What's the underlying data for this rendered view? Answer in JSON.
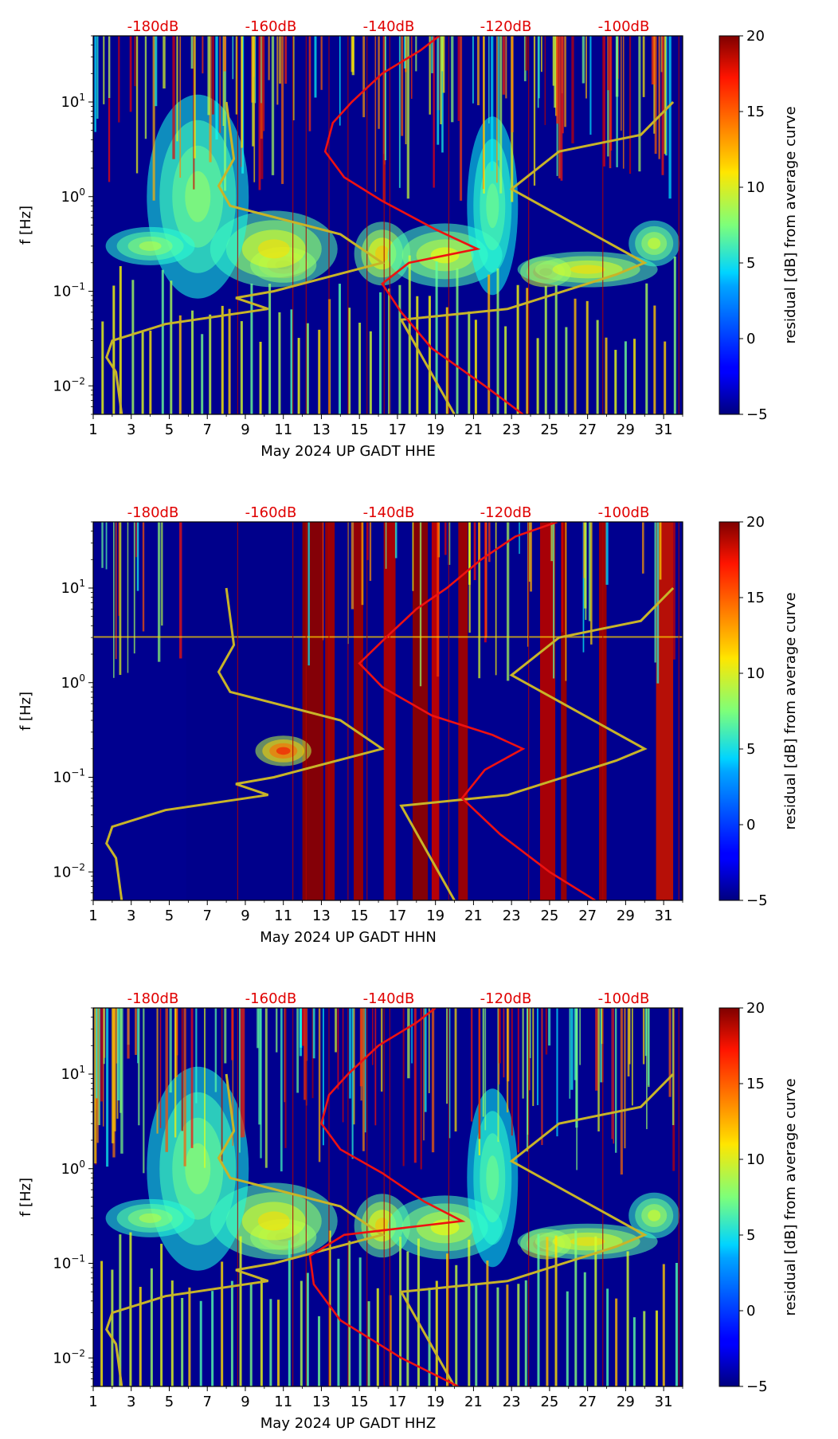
{
  "figure": {
    "time_axis": {
      "tick_labels": [
        "1",
        "3",
        "5",
        "7",
        "9",
        "11",
        "13",
        "15",
        "17",
        "19",
        "21",
        "23",
        "25",
        "27",
        "29",
        "31"
      ],
      "range_days": [
        1,
        32
      ]
    },
    "freq_axis": {
      "label": "f [Hz]",
      "tick_labels": [
        "10^-2",
        "10^-1",
        "10^0",
        "10^1"
      ],
      "range_hz": [
        0.005,
        50
      ]
    },
    "db_axis": {
      "tick_labels": [
        "-180dB",
        "-160dB",
        "-140dB",
        "-120dB",
        "-100dB"
      ],
      "color": "#e00000"
    },
    "colorbar": {
      "label": "residual [dB] from average curve",
      "tick_labels": [
        "−5",
        "0",
        "5",
        "10",
        "15",
        "20"
      ],
      "range": [
        -5,
        20
      ],
      "colormap": "jet"
    }
  },
  "chart_data": [
    {
      "type": "heatmap",
      "title": "",
      "xlabel": "May 2024 UP GADT  HHE",
      "ylabel": "f [Hz]",
      "xlim": [
        1,
        32
      ],
      "ylim_hz": [
        0.005,
        50
      ],
      "clim_db": [
        -5,
        20
      ],
      "yellow_curve": {
        "day": [
          8,
          8.4,
          7.6,
          8.2,
          14,
          16.2,
          10.5,
          8.5,
          10.2,
          4.8,
          2,
          1.7,
          2.2,
          2.5
        ],
        "hz": [
          10,
          2.5,
          1.3,
          0.8,
          0.4,
          0.2,
          0.1,
          0.085,
          0.065,
          0.045,
          0.03,
          0.02,
          0.014,
          0.005
        ]
      },
      "yellow_curve_right": {
        "day": [
          20,
          17.2,
          22.8,
          28.5,
          30,
          23,
          25.5,
          29.8,
          31.5
        ],
        "hz": [
          0.005,
          0.05,
          0.065,
          0.15,
          0.2,
          1.2,
          3,
          4.5,
          10
        ]
      },
      "red_psd_curve": {
        "day": [
          23.6,
          21.6,
          18.8,
          17.2,
          16.2,
          17.6,
          21.2,
          19,
          16.2,
          14.2,
          13.2,
          13.6,
          14.6,
          16.2,
          18.2,
          19.2
        ],
        "hz": [
          0.005,
          0.01,
          0.025,
          0.06,
          0.12,
          0.2,
          0.28,
          0.45,
          0.9,
          1.6,
          3,
          6,
          10,
          20,
          35,
          50
        ]
      }
    },
    {
      "type": "heatmap",
      "title": "",
      "xlabel": "May 2024 UP GADT  HHN",
      "ylabel": "f [Hz]",
      "xlim": [
        1,
        32
      ],
      "ylim_hz": [
        0.005,
        50
      ],
      "clim_db": [
        -5,
        20
      ],
      "yellow_curve": {
        "day": [
          8,
          8.4,
          7.6,
          8.2,
          14,
          16.2,
          10.5,
          8.5,
          10.2,
          4.8,
          2,
          1.7,
          2.2,
          2.5
        ],
        "hz": [
          10,
          2.5,
          1.3,
          0.8,
          0.4,
          0.2,
          0.1,
          0.085,
          0.065,
          0.045,
          0.03,
          0.02,
          0.014,
          0.005
        ]
      },
      "yellow_curve_right": {
        "day": [
          20,
          17.2,
          22.8,
          28.5,
          30,
          23,
          25.5,
          29.8,
          31.5
        ],
        "hz": [
          0.005,
          0.05,
          0.065,
          0.15,
          0.2,
          1.2,
          3,
          4.5,
          10
        ]
      },
      "red_psd_curve": {
        "day": [
          27.4,
          25,
          22.4,
          20.4,
          21.6,
          23.6,
          22,
          18.8,
          16.2,
          15,
          16.4,
          18,
          19.6,
          21.4,
          23.2,
          25.4
        ],
        "hz": [
          0.005,
          0.01,
          0.025,
          0.06,
          0.12,
          0.2,
          0.28,
          0.45,
          0.9,
          1.6,
          3,
          6,
          10,
          20,
          35,
          50
        ]
      }
    },
    {
      "type": "heatmap",
      "title": "",
      "xlabel": "May 2024 UP GADT  HHZ",
      "ylabel": "f [Hz]",
      "xlim": [
        1,
        32
      ],
      "ylim_hz": [
        0.005,
        50
      ],
      "clim_db": [
        -5,
        20
      ],
      "yellow_curve": {
        "day": [
          8,
          8.4,
          7.6,
          8.2,
          14,
          16.2,
          10.5,
          8.5,
          10.2,
          4.8,
          2,
          1.7,
          2.2,
          2.5
        ],
        "hz": [
          10,
          2.5,
          1.3,
          0.8,
          0.4,
          0.2,
          0.1,
          0.085,
          0.065,
          0.045,
          0.03,
          0.02,
          0.014,
          0.005
        ]
      },
      "yellow_curve_right": {
        "day": [
          20,
          17.2,
          22.8,
          28.5,
          30,
          23,
          25.5,
          29.8,
          31.5
        ],
        "hz": [
          0.005,
          0.05,
          0.065,
          0.15,
          0.2,
          1.2,
          3,
          4.5,
          10
        ]
      },
      "red_psd_curve": {
        "day": [
          20.2,
          17.2,
          14,
          12.6,
          12.4,
          14.2,
          20.4,
          18.4,
          16.2,
          14,
          13,
          13.4,
          14.4,
          16,
          18,
          19
        ],
        "hz": [
          0.005,
          0.01,
          0.025,
          0.06,
          0.12,
          0.2,
          0.28,
          0.45,
          0.9,
          1.6,
          3,
          6,
          10,
          20,
          35,
          50
        ]
      }
    }
  ]
}
